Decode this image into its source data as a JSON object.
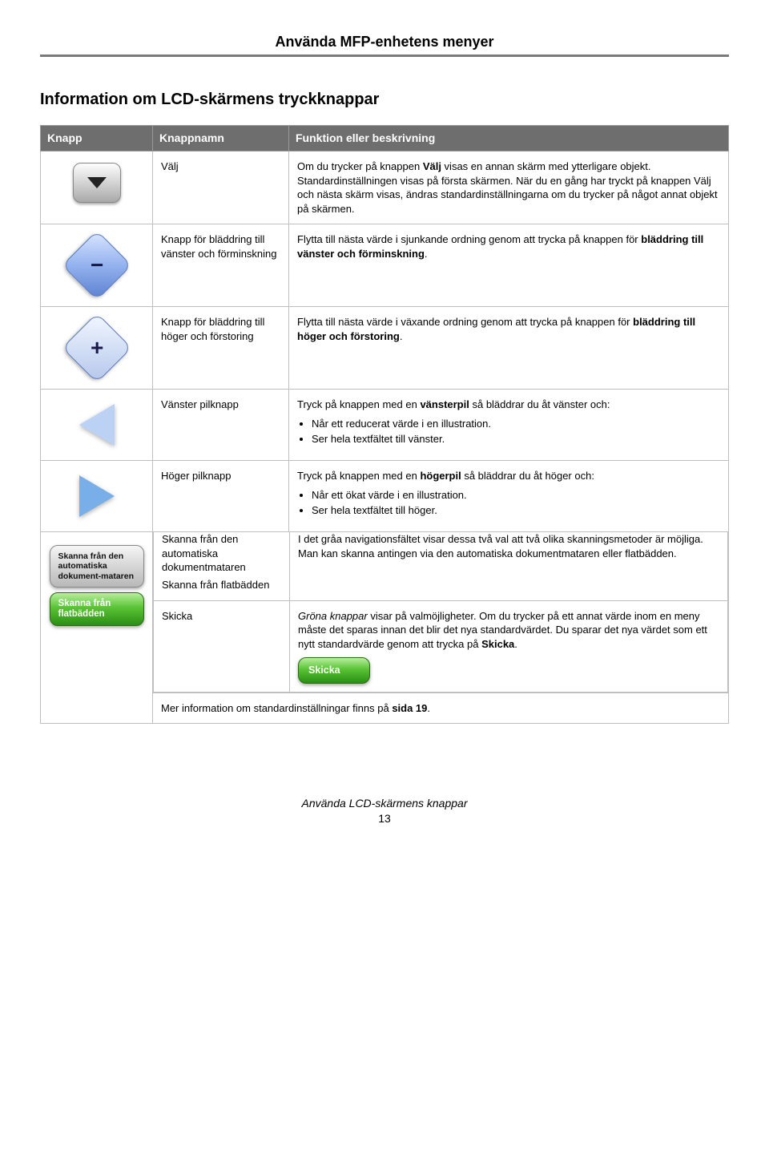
{
  "page_header": "Använda MFP-enhetens menyer",
  "section_title": "Information om LCD-skärmens tryckknappar",
  "table": {
    "headers": [
      "Knapp",
      "Knappnamn",
      "Funktion eller beskrivning"
    ],
    "rows": [
      {
        "name": "Välj",
        "desc_html": "Om du trycker på knappen <b>Välj</b> visas en annan skärm med ytterligare objekt. Standardinställningen visas på första skärmen. När du en gång har tryckt på knappen Välj och nästa skärm visas, ändras standardinställningarna om du trycker på något annat objekt på skärmen."
      },
      {
        "name": "Knapp för bläddring till vänster och förminskning",
        "desc_html": "Flytta till nästa värde i sjunkande ordning genom att trycka på knappen för <b>bläddring till vänster och förminskning</b>."
      },
      {
        "name": "Knapp för bläddring till höger och förstoring",
        "desc_html": "Flytta till nästa värde i växande ordning genom att trycka på knappen för <b>bläddring till höger och förstoring</b>."
      },
      {
        "name": "Vänster pilknapp",
        "desc_lead": "Tryck på knappen med en <b>vänsterpil</b> så bläddrar du åt vänster och:",
        "bullets": [
          "Når ett reducerat värde i en illustration.",
          "Ser hela textfältet till vänster."
        ]
      },
      {
        "name": "Höger pilknapp",
        "desc_lead": "Tryck på knappen med en <b>högerpil</b> så bläddrar du åt höger och:",
        "bullets": [
          "Når ett ökat värde i en illustration.",
          "Ser hela textfältet till höger."
        ]
      }
    ],
    "combo": {
      "btn_gray_label": "Skanna från den automatiska dokument-mataren",
      "btn_green_label": "Skanna från flatbädden",
      "name1": "Skanna från den automatiska dokumentmataren",
      "name2": "Skanna från flatbädden",
      "name3": "Skicka",
      "desc1": "I det gråa navigationsfältet visar dessa två val att två olika skanningsmetoder är möjliga. Man kan skanna antingen via den automatiska dokumentmataren eller flatbädden.",
      "desc2_html": "<span class='em'>Gröna knappar</span> visar på valmöjligheter. Om du trycker på ett annat värde inom en meny måste det sparas innan det blir det nya standardvärdet. Du sparar det nya värdet som ett nytt standardvärde genom att trycka på <b>Skicka</b>.",
      "skicka_btn": "Skicka",
      "footer_note_html": "Mer information om standardinställningar finns på <b>sida 19</b>."
    }
  },
  "footer_text": "Använda LCD-skärmens knappar",
  "footer_page": "13"
}
